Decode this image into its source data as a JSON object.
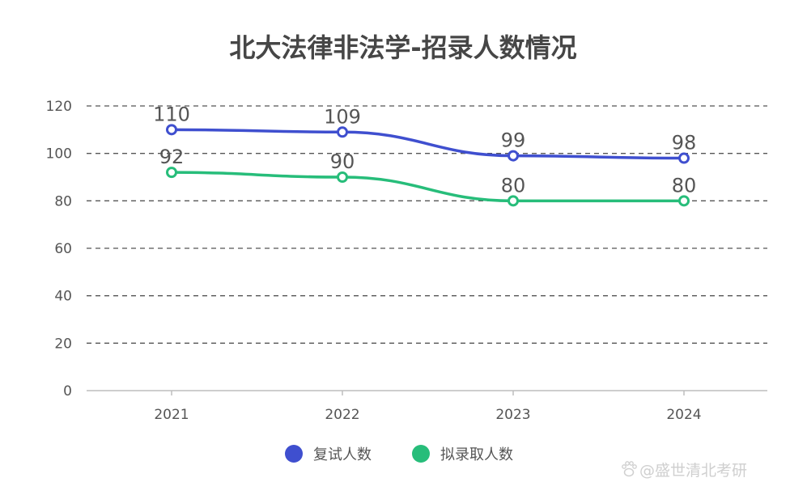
{
  "chart_data": {
    "type": "line",
    "title": "北大法律非法学-招录人数情况",
    "categories": [
      "2021",
      "2022",
      "2023",
      "2024"
    ],
    "series": [
      {
        "name": "复试人数",
        "values": [
          110,
          109,
          99,
          98
        ],
        "color": "#3f4fcf"
      },
      {
        "name": "拟录取人数",
        "values": [
          92,
          90,
          80,
          80
        ],
        "color": "#27bd7a"
      }
    ],
    "ylim": [
      0,
      120
    ],
    "yticks": [
      0,
      20,
      40,
      60,
      80,
      100,
      120
    ],
    "grid": true,
    "legend": "bottom-center",
    "smooth": true
  },
  "watermark": {
    "text": "@盛世清北考研",
    "icon": "paw-icon"
  }
}
